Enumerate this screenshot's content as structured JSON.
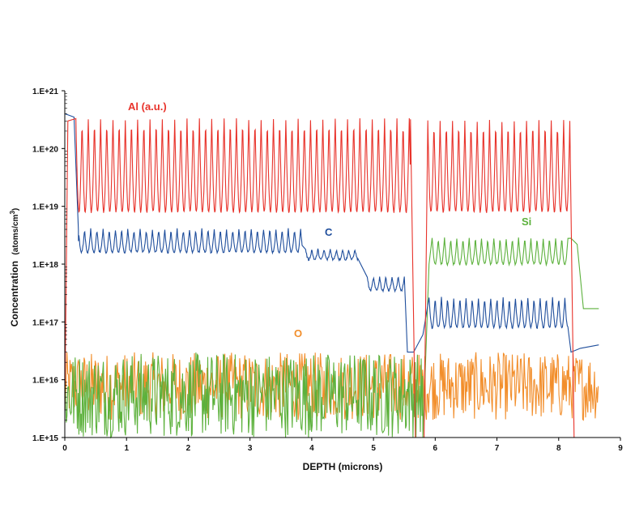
{
  "chart_data": {
    "type": "line",
    "title": "",
    "xlabel": "DEPTH (microns)",
    "ylabel_main": "Concentration",
    "ylabel_unit": "(atoms/cm",
    "ylabel_sup": "3",
    "ylabel_close": ")",
    "xlim": [
      0,
      9
    ],
    "ylim": [
      1000000000000000.0,
      1e+21
    ],
    "yscale": "log",
    "grid": false,
    "x_ticks": [
      "0",
      "1",
      "2",
      "3",
      "4",
      "5",
      "6",
      "7",
      "8",
      "9"
    ],
    "y_ticks": [
      "1.E+15",
      "1.E+16",
      "1.E+17",
      "1.E+18",
      "1.E+19",
      "1.E+20",
      "1.E+21"
    ],
    "series": [
      {
        "name": "Al (a.u.)",
        "color": "#e8322a",
        "segments": [
          {
            "x_start": 0.18,
            "x_end": 5.6,
            "period_microns": 0.1,
            "high": 3.2e+20,
            "low": 8e+18
          },
          {
            "x_start": 5.88,
            "x_end": 8.18,
            "period_microns": 0.1,
            "high": 3e+20,
            "low": 8e+18
          }
        ],
        "points": [
          [
            0.0,
            3000000000000000.0
          ],
          [
            0.05,
            3e+20
          ],
          [
            0.18,
            3.2e+20
          ],
          [
            5.6,
            3.2e+20
          ],
          [
            5.68,
            1000000000000000.0
          ],
          [
            5.82,
            1000000000000000.0
          ],
          [
            5.88,
            3e+20
          ],
          [
            8.18,
            3e+20
          ],
          [
            8.25,
            1000000000000000.0
          ],
          [
            8.65,
            1000000000000000.0
          ]
        ]
      },
      {
        "name": "C",
        "color": "#1f4e9c",
        "segments": [
          {
            "x_start": 0.22,
            "x_end": 3.85,
            "period_microns": 0.1,
            "high": 4e+18,
            "low": 1.6e+18
          },
          {
            "x_start": 3.9,
            "x_end": 4.75,
            "period_microns": 0.1,
            "high": 1.8e+18,
            "low": 1.2e+18
          },
          {
            "x_start": 4.9,
            "x_end": 5.5,
            "period_microns": 0.1,
            "high": 6e+17,
            "low": 3.5e+17
          },
          {
            "x_start": 5.9,
            "x_end": 8.15,
            "period_microns": 0.1,
            "high": 2.6e+17,
            "low": 8e+16
          }
        ],
        "points": [
          [
            0.0,
            4e+20
          ],
          [
            0.15,
            3.5e+20
          ],
          [
            0.22,
            2.5e+18
          ],
          [
            5.55,
            3e+16
          ],
          [
            5.65,
            3e+16
          ],
          [
            5.8,
            6e+16
          ],
          [
            8.2,
            3e+16
          ],
          [
            8.35,
            3.5e+16
          ],
          [
            8.65,
            4e+16
          ]
        ]
      },
      {
        "name": "Si",
        "color": "#5cb13c",
        "segments": [
          {
            "x_start": 5.95,
            "x_end": 8.15,
            "period_microns": 0.1,
            "high": 2.8e+18,
            "low": 1e+18
          }
        ],
        "noise_range": [
          0.0,
          5.8,
          1000000000000000.0,
          3e+16
        ],
        "points": [
          [
            5.8,
            1000000000000000.0
          ],
          [
            5.9,
            1e+18
          ],
          [
            8.2,
            2.8e+18
          ],
          [
            8.3,
            2.2e+18
          ],
          [
            8.4,
            1.7e+17
          ],
          [
            8.65,
            1.7e+17
          ]
        ]
      },
      {
        "name": "O",
        "color": "#f28e2b",
        "noise_range": [
          0.0,
          8.65,
          2000000000000000.0,
          3e+16
        ],
        "points": []
      }
    ]
  }
}
